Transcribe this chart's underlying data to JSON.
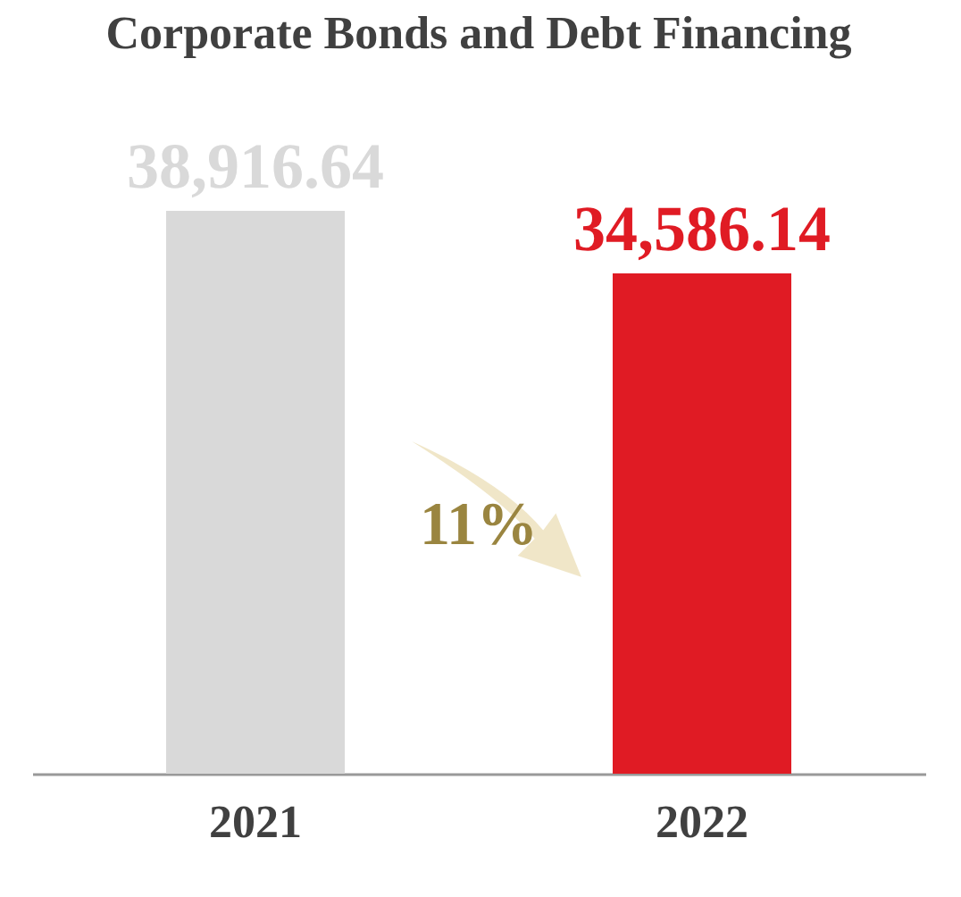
{
  "chart_data": {
    "type": "bar",
    "title": "Corporate Bonds and Debt Financing",
    "categories": [
      "2021",
      "2022"
    ],
    "values": [
      38916.64,
      34586.14
    ],
    "value_labels": [
      "38,916.64",
      "34,586.14"
    ],
    "colors": [
      "#d9d9d9",
      "#e01b24"
    ],
    "annotations": [
      "11%"
    ]
  }
}
